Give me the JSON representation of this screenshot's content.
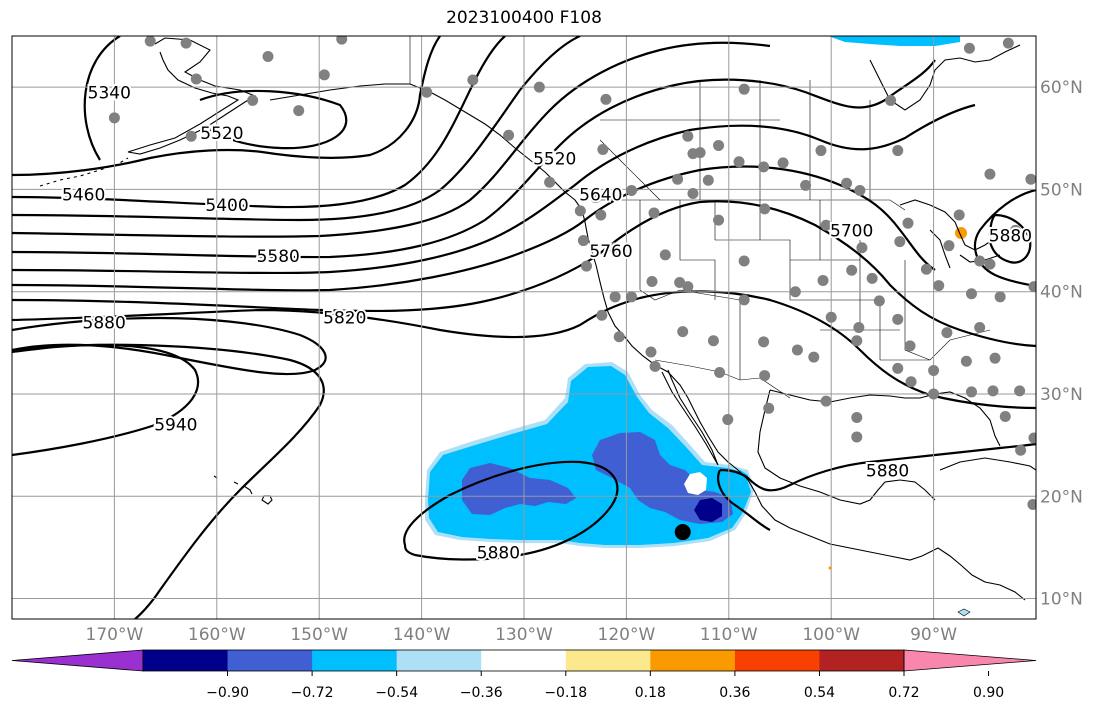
{
  "title": "2023100400 F108",
  "map": {
    "projection": "PlateCarree",
    "lon_range": [
      -180,
      -80
    ],
    "lat_range": [
      8,
      65
    ],
    "lon_ticks": [
      {
        "value": -170,
        "label": "170°W"
      },
      {
        "value": -160,
        "label": "160°W"
      },
      {
        "value": -150,
        "label": "150°W"
      },
      {
        "value": -140,
        "label": "140°W"
      },
      {
        "value": -130,
        "label": "130°W"
      },
      {
        "value": -120,
        "label": "120°W"
      },
      {
        "value": -110,
        "label": "110°W"
      },
      {
        "value": -100,
        "label": "100°W"
      },
      {
        "value": -90,
        "label": "90°W"
      }
    ],
    "lat_ticks": [
      {
        "value": 10,
        "label": "10°N"
      },
      {
        "value": 20,
        "label": "20°N"
      },
      {
        "value": 30,
        "label": "30°N"
      },
      {
        "value": 40,
        "label": "40°N"
      },
      {
        "value": 50,
        "label": "50°N"
      },
      {
        "value": 60,
        "label": "60°N"
      }
    ],
    "grid": true,
    "contour_labels": [
      {
        "text": "5340",
        "lon": -170.5,
        "lat": 59.5
      },
      {
        "text": "5520",
        "lon": -159.5,
        "lat": 55.5
      },
      {
        "text": "5460",
        "lon": -173,
        "lat": 49.5
      },
      {
        "text": "5400",
        "lon": -159,
        "lat": 48.5
      },
      {
        "text": "5580",
        "lon": -154,
        "lat": 43.5
      },
      {
        "text": "5820",
        "lon": -147.5,
        "lat": 37.5
      },
      {
        "text": "5880",
        "lon": -171,
        "lat": 37
      },
      {
        "text": "5940",
        "lon": -164,
        "lat": 27
      },
      {
        "text": "5520",
        "lon": -127,
        "lat": 53
      },
      {
        "text": "5640",
        "lon": -122.5,
        "lat": 49.5
      },
      {
        "text": "5760",
        "lon": -121.5,
        "lat": 44
      },
      {
        "text": "5700",
        "lon": -98,
        "lat": 46
      },
      {
        "text": "5880",
        "lon": -132.5,
        "lat": 14.5
      },
      {
        "text": "5880",
        "lon": -94.5,
        "lat": 22.5
      },
      {
        "text": "5880",
        "lon": -82.5,
        "lat": 45.5
      }
    ],
    "station_color": "#808080",
    "stations": [
      {
        "lon": -166.5,
        "lat": 64.5
      },
      {
        "lon": -163,
        "lat": 64.3
      },
      {
        "lon": -147.8,
        "lat": 64.7
      },
      {
        "lon": -170,
        "lat": 57
      },
      {
        "lon": -162,
        "lat": 60.8
      },
      {
        "lon": -156.5,
        "lat": 58.7
      },
      {
        "lon": -155,
        "lat": 63
      },
      {
        "lon": -149.5,
        "lat": 61.2
      },
      {
        "lon": -152,
        "lat": 57.7
      },
      {
        "lon": -162.5,
        "lat": 55.2
      },
      {
        "lon": -139.5,
        "lat": 59.5
      },
      {
        "lon": -135,
        "lat": 60.7
      },
      {
        "lon": -128.5,
        "lat": 60
      },
      {
        "lon": -122,
        "lat": 58.8
      },
      {
        "lon": -131.5,
        "lat": 55.3
      },
      {
        "lon": -122.3,
        "lat": 53.9
      },
      {
        "lon": -127.5,
        "lat": 50.7
      },
      {
        "lon": -123,
        "lat": 49.2
      },
      {
        "lon": -124.5,
        "lat": 47.9
      },
      {
        "lon": -122.5,
        "lat": 47.5
      },
      {
        "lon": -119.5,
        "lat": 49.9
      },
      {
        "lon": -114,
        "lat": 55.2
      },
      {
        "lon": -113.5,
        "lat": 53.5
      },
      {
        "lon": -111,
        "lat": 54.3
      },
      {
        "lon": -112.8,
        "lat": 53.6
      },
      {
        "lon": -108.5,
        "lat": 59.8
      },
      {
        "lon": -109,
        "lat": 52.7
      },
      {
        "lon": -106.6,
        "lat": 52.2
      },
      {
        "lon": -104.7,
        "lat": 52.6
      },
      {
        "lon": -101,
        "lat": 53.8
      },
      {
        "lon": -98.5,
        "lat": 50.6
      },
      {
        "lon": -97.2,
        "lat": 49.9
      },
      {
        "lon": -102.5,
        "lat": 50.4
      },
      {
        "lon": -112,
        "lat": 50.9
      },
      {
        "lon": -113.5,
        "lat": 49.6
      },
      {
        "lon": -115,
        "lat": 51
      },
      {
        "lon": -93.5,
        "lat": 53.8
      },
      {
        "lon": -94.2,
        "lat": 58.7
      },
      {
        "lon": -86.5,
        "lat": 63.8
      },
      {
        "lon": -84.5,
        "lat": 51.5
      },
      {
        "lon": -82.7,
        "lat": 64.3
      },
      {
        "lon": -80.5,
        "lat": 51
      },
      {
        "lon": -117.3,
        "lat": 47.7
      },
      {
        "lon": -121.2,
        "lat": 44.3
      },
      {
        "lon": -116.2,
        "lat": 43.6
      },
      {
        "lon": -124.2,
        "lat": 45
      },
      {
        "lon": -123.9,
        "lat": 42.5
      },
      {
        "lon": -121.1,
        "lat": 39.5
      },
      {
        "lon": -119.5,
        "lat": 39.5
      },
      {
        "lon": -117.5,
        "lat": 41
      },
      {
        "lon": -114,
        "lat": 40.5
      },
      {
        "lon": -114.8,
        "lat": 40.9
      },
      {
        "lon": -108.5,
        "lat": 39.2
      },
      {
        "lon": -108.5,
        "lat": 43
      },
      {
        "lon": -111,
        "lat": 47
      },
      {
        "lon": -106.5,
        "lat": 48.1
      },
      {
        "lon": -100.5,
        "lat": 46.5
      },
      {
        "lon": -97,
        "lat": 44.3
      },
      {
        "lon": -98,
        "lat": 42.1
      },
      {
        "lon": -96,
        "lat": 41.3
      },
      {
        "lon": -103.5,
        "lat": 40
      },
      {
        "lon": -100.8,
        "lat": 41.1
      },
      {
        "lon": -100,
        "lat": 37.5
      },
      {
        "lon": -95.3,
        "lat": 39.1
      },
      {
        "lon": -97.3,
        "lat": 36.5
      },
      {
        "lon": -97.5,
        "lat": 35.2
      },
      {
        "lon": -93.5,
        "lat": 37.3
      },
      {
        "lon": -93.3,
        "lat": 44.9
      },
      {
        "lon": -92.5,
        "lat": 46.7
      },
      {
        "lon": -90.7,
        "lat": 42.2
      },
      {
        "lon": -89.5,
        "lat": 40.6
      },
      {
        "lon": -88.5,
        "lat": 44.5
      },
      {
        "lon": -87.5,
        "lat": 47.5
      },
      {
        "lon": -85.5,
        "lat": 43
      },
      {
        "lon": -86.3,
        "lat": 39.8
      },
      {
        "lon": -84.5,
        "lat": 42.7
      },
      {
        "lon": -83.5,
        "lat": 39.5
      },
      {
        "lon": -80.2,
        "lat": 40.5
      },
      {
        "lon": -82,
        "lat": 46
      },
      {
        "lon": -85.5,
        "lat": 36.5
      },
      {
        "lon": -84,
        "lat": 33.5
      },
      {
        "lon": -86.8,
        "lat": 33.2
      },
      {
        "lon": -88.7,
        "lat": 36
      },
      {
        "lon": -90,
        "lat": 32.3
      },
      {
        "lon": -92.3,
        "lat": 34.7
      },
      {
        "lon": -92.2,
        "lat": 31.2
      },
      {
        "lon": -93.5,
        "lat": 32.5
      },
      {
        "lon": -90,
        "lat": 30
      },
      {
        "lon": -86.3,
        "lat": 30.2
      },
      {
        "lon": -84.2,
        "lat": 30.3
      },
      {
        "lon": -81.6,
        "lat": 30.3
      },
      {
        "lon": -83,
        "lat": 27.8
      },
      {
        "lon": -80.2,
        "lat": 25.7
      },
      {
        "lon": -81.5,
        "lat": 24.5
      },
      {
        "lon": -80.3,
        "lat": 19.2
      },
      {
        "lon": -97.5,
        "lat": 27.7
      },
      {
        "lon": -97.5,
        "lat": 25.8
      },
      {
        "lon": -100.5,
        "lat": 29.3
      },
      {
        "lon": -101.7,
        "lat": 33.6
      },
      {
        "lon": -103.3,
        "lat": 34.3
      },
      {
        "lon": -106.6,
        "lat": 35.1
      },
      {
        "lon": -106.5,
        "lat": 31.8
      },
      {
        "lon": -110.9,
        "lat": 32.1
      },
      {
        "lon": -111.5,
        "lat": 35.2
      },
      {
        "lon": -114.5,
        "lat": 36.1
      },
      {
        "lon": -117.2,
        "lat": 32.7
      },
      {
        "lon": -117.6,
        "lat": 34.1
      },
      {
        "lon": -122.4,
        "lat": 37.7
      },
      {
        "lon": -120.7,
        "lat": 35.6
      },
      {
        "lon": -110.1,
        "lat": 27.5
      },
      {
        "lon": -106.1,
        "lat": 28.6
      }
    ],
    "storm_marker": {
      "lon": -114.5,
      "lat": 16.5,
      "color": "#000000"
    },
    "shading": {
      "levels_desc": "negative anomaly shading west of Mexico",
      "colors": {
        "light_blue": "#ade0f7",
        "cyan": "#00bfff",
        "royal_blue": "#3f5fd2",
        "navy": "#00008b",
        "orange": "#f99b00"
      }
    }
  },
  "colorbar": {
    "colors": [
      "#9b30d0",
      "#00008b",
      "#3f5fd2",
      "#00bfff",
      "#ade0f7",
      "#ffffff",
      "#fce98d",
      "#f99b00",
      "#f84000",
      "#b22222",
      "#f986ad"
    ],
    "tick_labels": [
      "−0.90",
      "−0.72",
      "−0.54",
      "−0.36",
      "−0.18",
      "0.18",
      "0.36",
      "0.54",
      "0.72",
      "0.90"
    ],
    "extend": "both"
  }
}
